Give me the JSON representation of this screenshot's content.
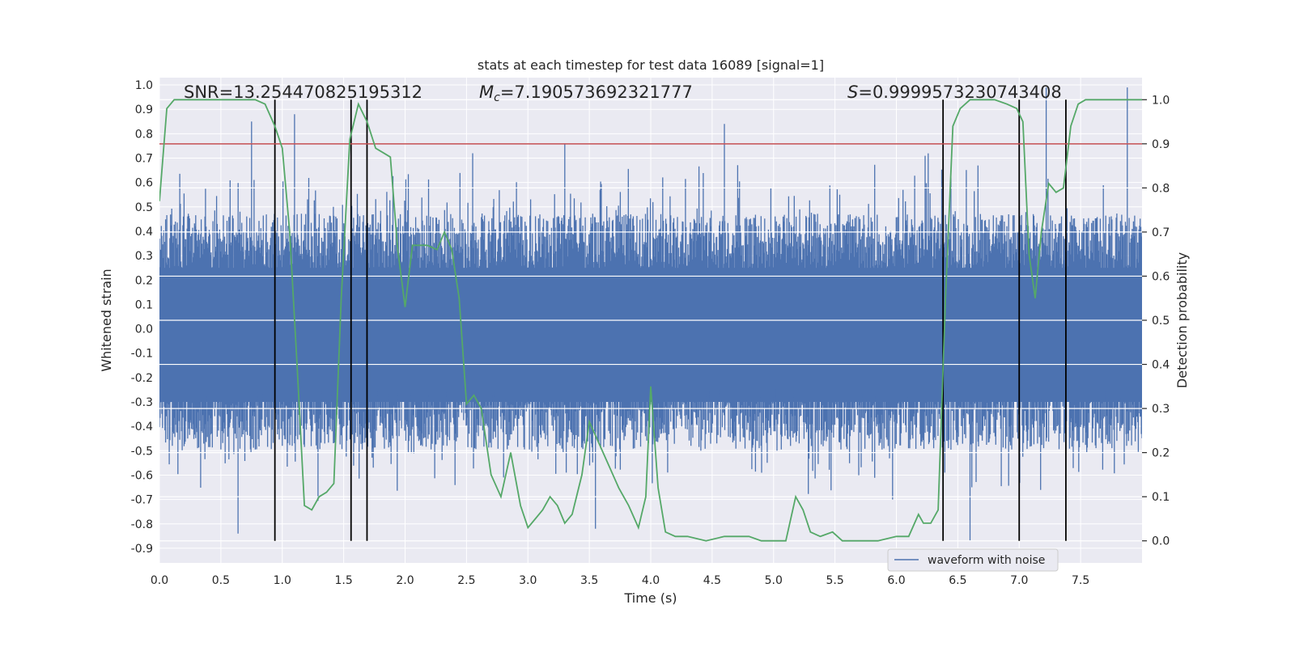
{
  "chart_data": {
    "type": "line",
    "title": "stats at each timestep for test data 16089 [signal=1]",
    "xlabel": "Time (s)",
    "ylabel": "Whitened strain",
    "ylabel_right": "Detection probability",
    "xlim": [
      0.0,
      8.0
    ],
    "ylim": [
      -0.96,
      1.03
    ],
    "ylim_right": [
      -0.05,
      1.05
    ],
    "x_ticks": [
      "0.0",
      "0.5",
      "1.0",
      "1.5",
      "2.0",
      "2.5",
      "3.0",
      "3.5",
      "4.0",
      "4.5",
      "5.0",
      "5.5",
      "6.0",
      "6.5",
      "7.0",
      "7.5"
    ],
    "y_ticks": [
      "1.0",
      "0.9",
      "0.8",
      "0.7",
      "0.6",
      "0.5",
      "0.4",
      "0.3",
      "0.2",
      "0.1",
      "0.0",
      "-0.1",
      "-0.2",
      "-0.3",
      "-0.4",
      "-0.5",
      "-0.6",
      "-0.7",
      "-0.8",
      "-0.9"
    ],
    "y_ticks_right": [
      "1.0",
      "0.9",
      "0.8",
      "0.7",
      "0.6",
      "0.5",
      "0.4",
      "0.3",
      "0.2",
      "0.1",
      "0.0"
    ],
    "annotations": {
      "snr": "SNR=13.254470825195312",
      "mc_symbol": "M",
      "mc_sub": "c",
      "mc_value": "=7.190573692321777",
      "s_symbol": "S",
      "s_value": "=0.9999573230743408"
    },
    "legend": {
      "label": "waveform with noise",
      "loc": "lower right"
    },
    "threshold_right": 0.9,
    "vertical_lines_x": [
      0.94,
      1.56,
      1.69,
      6.38,
      7.0,
      7.38
    ],
    "waveform": {
      "name": "waveform with noise",
      "x_range": [
        0.0,
        8.0
      ],
      "envelope_positive_typical": 0.43,
      "envelope_negative_typical": -0.45,
      "peaks": [
        {
          "x": 0.64,
          "y": -0.84
        },
        {
          "x": 0.75,
          "y": 0.85
        },
        {
          "x": 1.1,
          "y": 0.88
        },
        {
          "x": 2.55,
          "y": 0.72
        },
        {
          "x": 3.3,
          "y": 0.76
        },
        {
          "x": 3.55,
          "y": -0.82
        },
        {
          "x": 4.6,
          "y": 0.84
        },
        {
          "x": 6.6,
          "y": -0.87
        },
        {
          "x": 7.22,
          "y": 0.99
        },
        {
          "x": 7.88,
          "y": 0.99
        }
      ]
    },
    "series": [
      {
        "name": "",
        "color": "#55a868",
        "axis": "right",
        "x": [
          0.0,
          0.06,
          0.12,
          0.2,
          0.3,
          0.4,
          0.5,
          0.6,
          0.7,
          0.78,
          0.86,
          0.94,
          1.0,
          1.06,
          1.12,
          1.18,
          1.24,
          1.3,
          1.36,
          1.42,
          1.48,
          1.55,
          1.62,
          1.69,
          1.76,
          1.82,
          1.88,
          1.94,
          2.0,
          2.06,
          2.12,
          2.18,
          2.26,
          2.32,
          2.38,
          2.44,
          2.5,
          2.56,
          2.62,
          2.7,
          2.78,
          2.86,
          2.94,
          3.0,
          3.06,
          3.12,
          3.18,
          3.24,
          3.3,
          3.36,
          3.44,
          3.5,
          3.58,
          3.66,
          3.74,
          3.82,
          3.9,
          3.96,
          4.0,
          4.06,
          4.12,
          4.2,
          4.3,
          4.45,
          4.6,
          4.7,
          4.8,
          4.9,
          5.0,
          5.1,
          5.18,
          5.24,
          5.3,
          5.38,
          5.48,
          5.56,
          5.7,
          5.85,
          6.0,
          6.1,
          6.18,
          6.22,
          6.28,
          6.34,
          6.4,
          6.46,
          6.52,
          6.6,
          6.7,
          6.8,
          6.9,
          6.98,
          7.03,
          7.08,
          7.13,
          7.18,
          7.24,
          7.3,
          7.36,
          7.42,
          7.48,
          7.54,
          7.6,
          7.7,
          7.8,
          7.9,
          8.0
        ],
        "y": [
          0.77,
          0.98,
          1.0,
          1.0,
          1.0,
          1.0,
          1.0,
          1.0,
          1.0,
          1.0,
          0.99,
          0.94,
          0.89,
          0.7,
          0.4,
          0.08,
          0.07,
          0.1,
          0.11,
          0.13,
          0.55,
          0.91,
          0.99,
          0.95,
          0.89,
          0.88,
          0.87,
          0.66,
          0.53,
          0.67,
          0.67,
          0.67,
          0.66,
          0.7,
          0.66,
          0.55,
          0.31,
          0.33,
          0.3,
          0.15,
          0.1,
          0.2,
          0.08,
          0.03,
          0.05,
          0.07,
          0.1,
          0.08,
          0.04,
          0.06,
          0.15,
          0.27,
          0.22,
          0.17,
          0.12,
          0.08,
          0.03,
          0.1,
          0.35,
          0.12,
          0.02,
          0.01,
          0.01,
          0.0,
          0.01,
          0.01,
          0.01,
          0.0,
          0.0,
          0.0,
          0.1,
          0.07,
          0.02,
          0.01,
          0.02,
          0.0,
          0.0,
          0.0,
          0.01,
          0.01,
          0.06,
          0.04,
          0.04,
          0.07,
          0.55,
          0.94,
          0.98,
          1.0,
          1.0,
          1.0,
          0.99,
          0.98,
          0.95,
          0.65,
          0.55,
          0.7,
          0.81,
          0.79,
          0.8,
          0.94,
          0.99,
          1.0,
          1.0,
          1.0,
          1.0,
          1.0,
          1.0
        ]
      },
      {
        "name": "",
        "color": "#c44e52",
        "axis": "right",
        "x": [
          0.0,
          8.0
        ],
        "y": [
          0.9,
          0.9
        ]
      }
    ],
    "grid": true,
    "colors": {
      "background": "#eaeaf2",
      "waveform": "#4c72b0",
      "probability": "#55a868",
      "threshold": "#c44e52",
      "vertical_lines": "#000000"
    }
  }
}
